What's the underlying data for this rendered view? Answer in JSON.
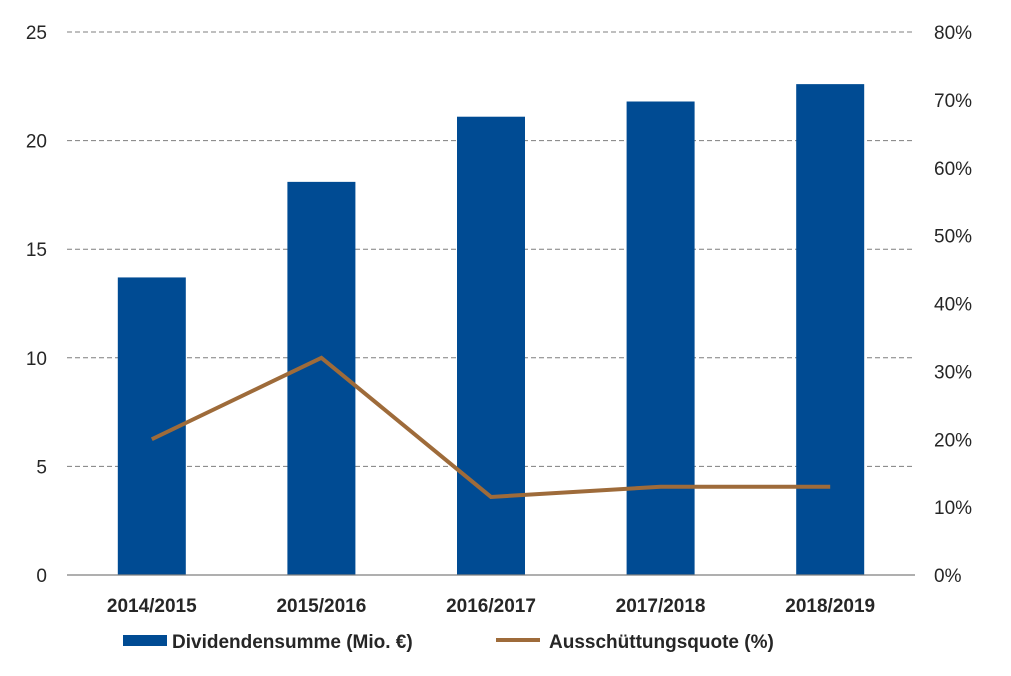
{
  "chart_data": {
    "type": "bar",
    "categories": [
      "2014/2015",
      "2015/2016",
      "2016/2017",
      "2017/2018",
      "2018/2019"
    ],
    "series": [
      {
        "name": "Dividendensumme (Mio. €)",
        "type": "bar",
        "axis": "left",
        "values": [
          13.7,
          18.1,
          21.1,
          21.8,
          22.6
        ],
        "color": "#004b93"
      },
      {
        "name": "Ausschüttungsquote (%)",
        "type": "line",
        "axis": "right",
        "values": [
          20,
          32,
          11.5,
          13,
          13
        ],
        "color": "#9e6b3a"
      }
    ],
    "y_left": {
      "min": 0,
      "max": 25,
      "ticks": [
        "0",
        "5",
        "10",
        "15",
        "20",
        "25"
      ]
    },
    "y_right": {
      "min": 0,
      "max": 80,
      "ticks": [
        "0%",
        "10%",
        "20%",
        "30%",
        "40%",
        "50%",
        "60%",
        "70%",
        "80%"
      ]
    },
    "grid": "dashed horizontal",
    "legend": "bottom"
  }
}
